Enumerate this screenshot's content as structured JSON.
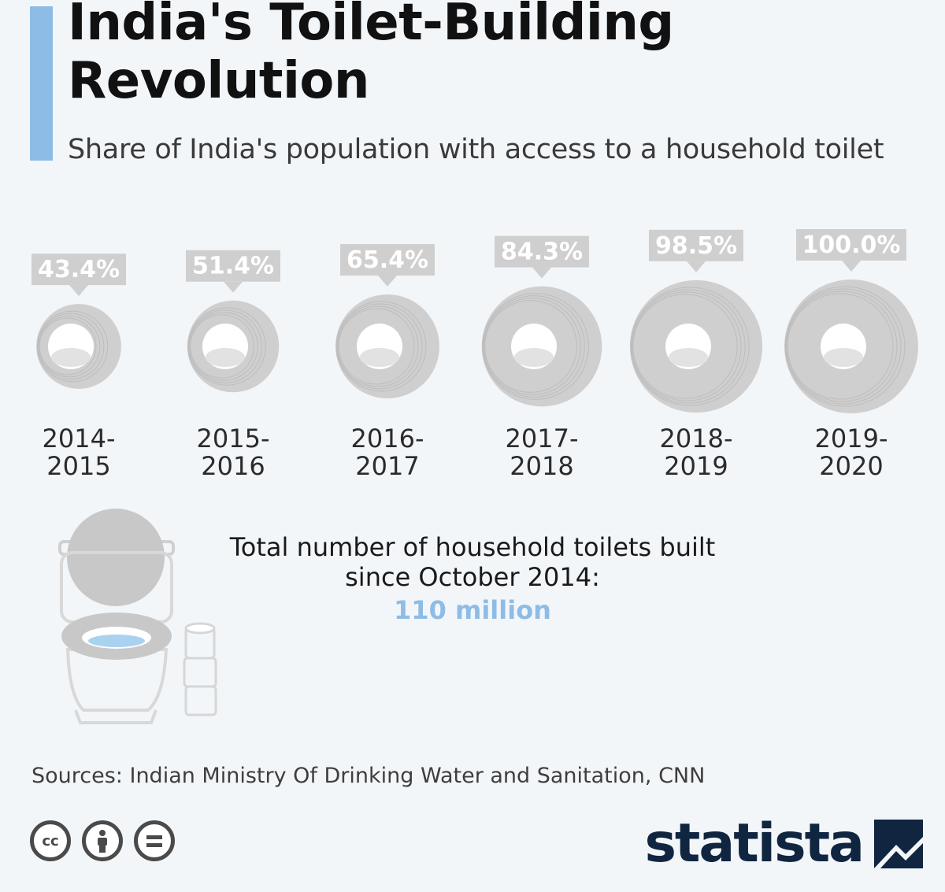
{
  "header": {
    "title_line1": "India's Toilet-Building",
    "title_line2": "Revolution",
    "subtitle": "Share of India's population with access to a household toilet"
  },
  "chart_data": {
    "type": "bar",
    "title": "India's Toilet-Building Revolution",
    "subtitle": "Share of India's population with access to a household toilet",
    "categories": [
      "2014-2015",
      "2015-2016",
      "2016-2017",
      "2017-2018",
      "2018-2019",
      "2019-2020"
    ],
    "category_lines": [
      [
        "2014-",
        "2015"
      ],
      [
        "2015-",
        "2016"
      ],
      [
        "2016-",
        "2017"
      ],
      [
        "2017-",
        "2018"
      ],
      [
        "2018-",
        "2019"
      ],
      [
        "2019-",
        "2020"
      ]
    ],
    "values": [
      43.4,
      51.4,
      65.4,
      84.3,
      98.5,
      100.0
    ],
    "value_labels": [
      "43.4%",
      "51.4%",
      "65.4%",
      "84.3%",
      "98.5%",
      "100.0%"
    ],
    "unit": "%",
    "ylim": [
      0,
      100
    ],
    "mark": "toilet-paper-roll sized by value",
    "colors": {
      "roll": "#cfcfcf",
      "label_box": "#cfcfcf",
      "label_text": "#ffffff"
    }
  },
  "total": {
    "text_line1": "Total number of household toilets built",
    "text_line2": "since October 2014:",
    "value": "110 million",
    "color": "#8dbce6"
  },
  "sources": "Sources: Indian Ministry Of Drinking Water and Sanitation, CNN",
  "license": {
    "cc_label": "cc"
  },
  "brand": {
    "name": "statista",
    "color": "#0f2540"
  }
}
